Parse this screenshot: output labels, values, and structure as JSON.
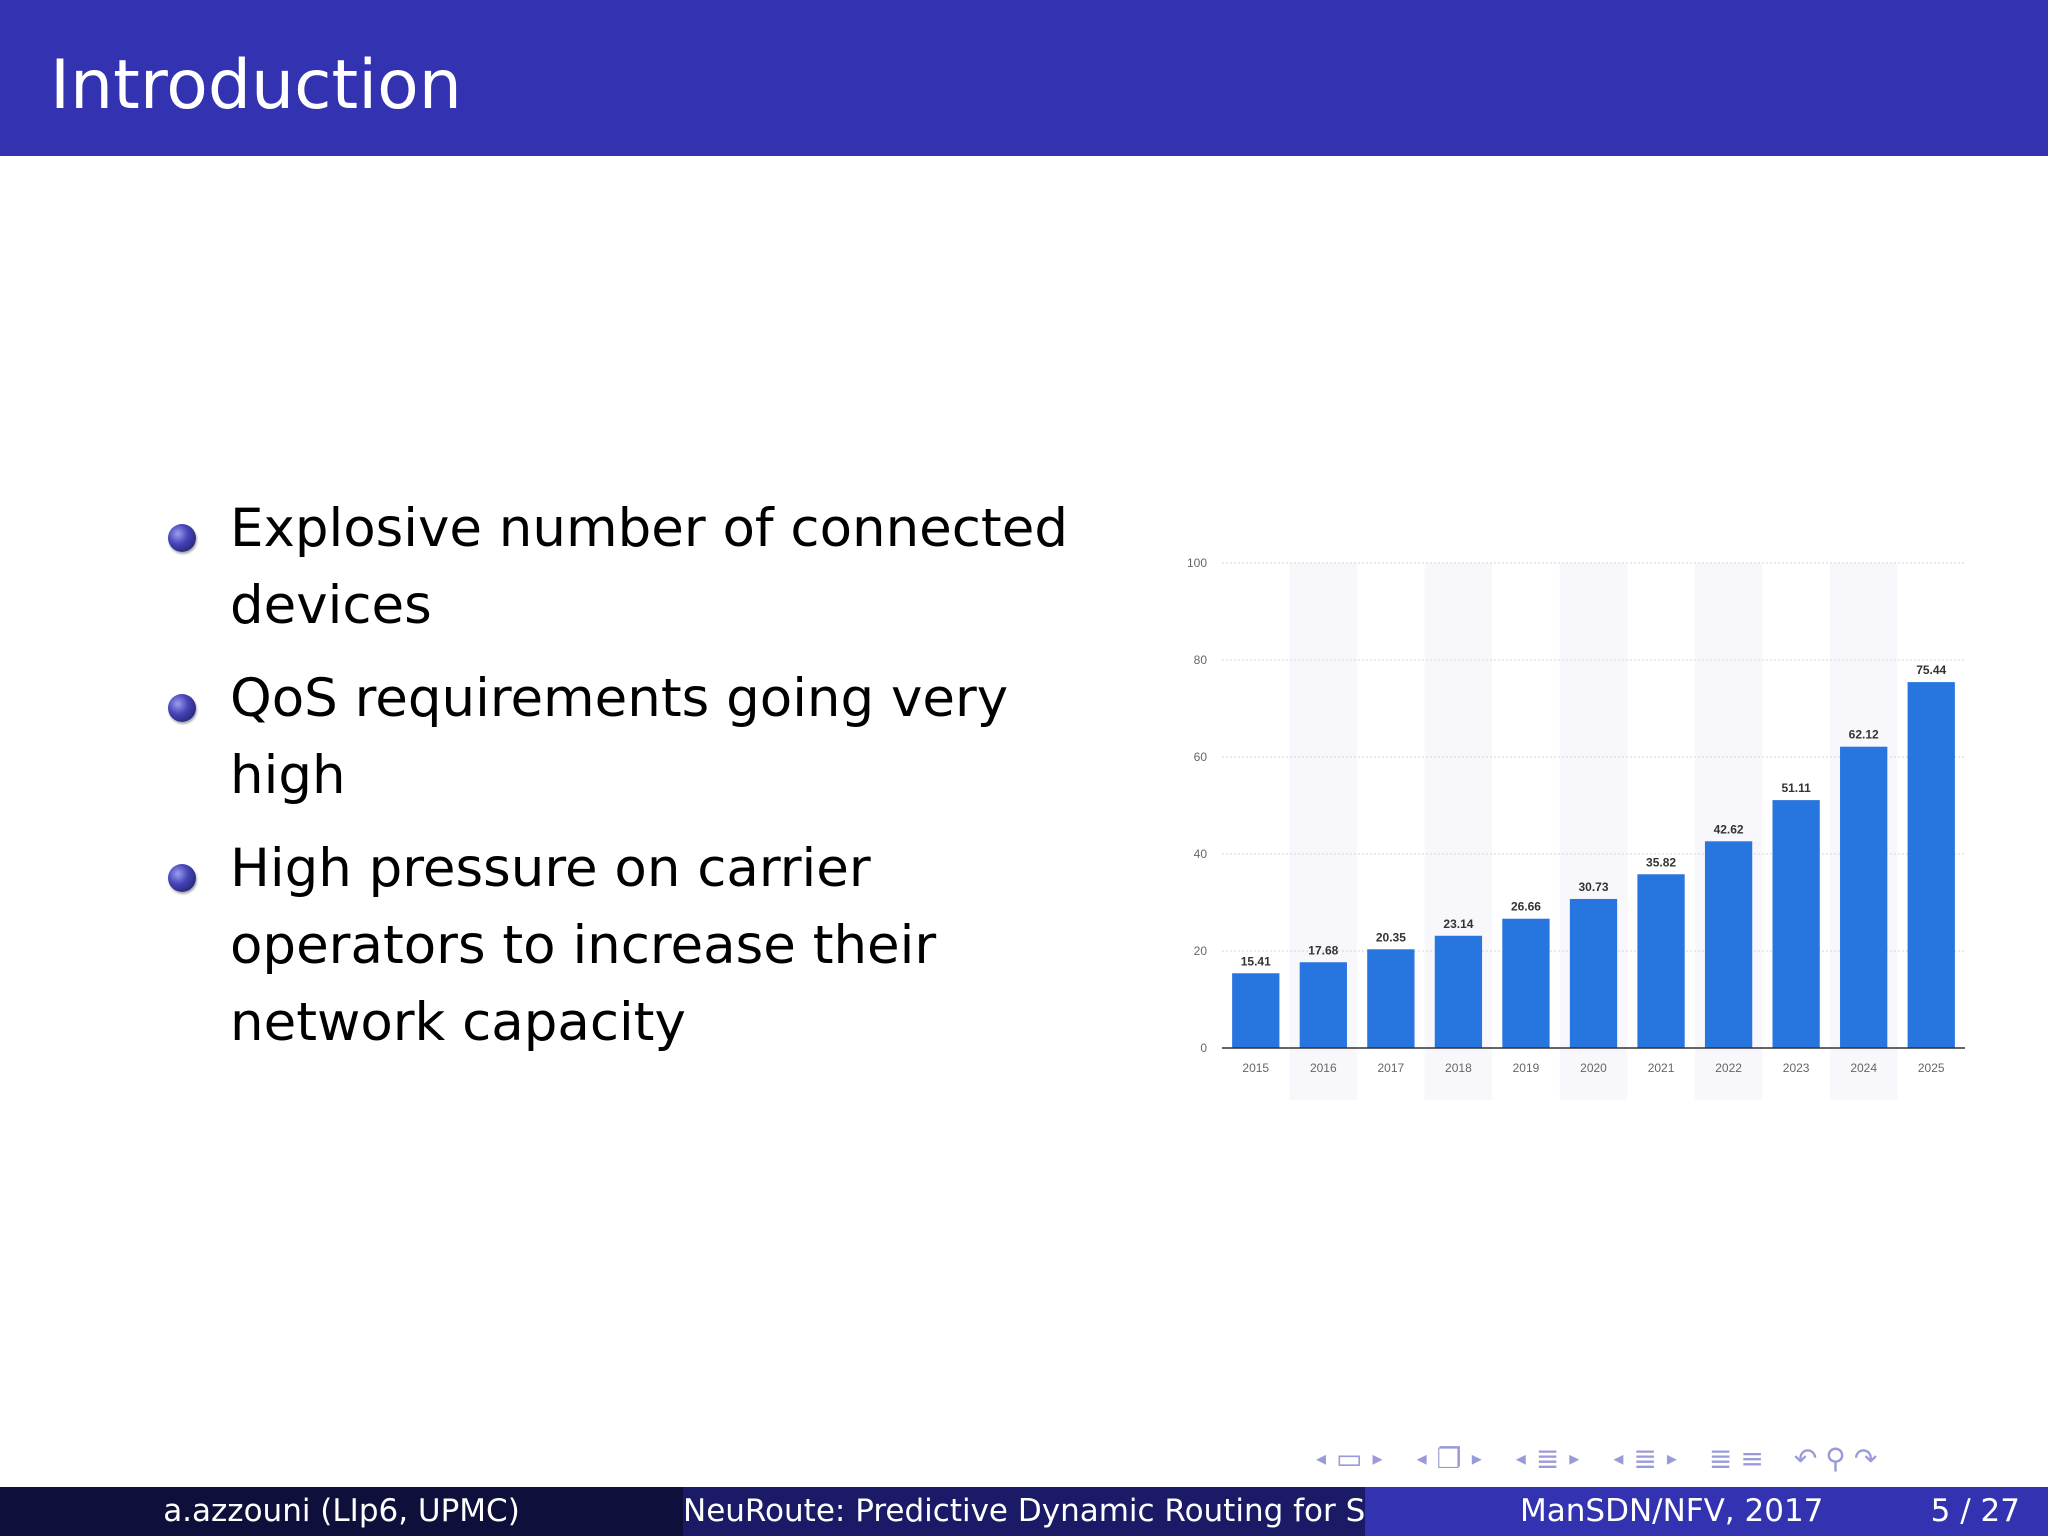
{
  "slide": {
    "title": "Introduction",
    "bullets": [
      "Explosive number of connected devices",
      "QoS requirements going very high",
      "High pressure on carrier operators to increase their network capacity"
    ]
  },
  "footer": {
    "author": "a.azzouni  (LIp6, UPMC)",
    "talk_title": "NeuRoute: Predictive Dynamic Routing for Software-Defined Networks",
    "conference": "ManSDN/NFV, 2017",
    "page": "5 / 27"
  },
  "nav_icons": [
    "arrow-left-icon",
    "frame-icon",
    "arrow-right-icon",
    "subsection-icon",
    "section-icon",
    "toc-icon",
    "undo-icon",
    "search-icon",
    "redo-icon"
  ],
  "colors": {
    "title_bar": "#3333b2",
    "bar": "#2775de",
    "footer_left": "#0f0f3c",
    "footer_mid": "#1a1a66",
    "footer_right": "#3333b2"
  },
  "chart_data": {
    "type": "bar",
    "categories": [
      "2015",
      "2016",
      "2017",
      "2018",
      "2019",
      "2020",
      "2021",
      "2022",
      "2023",
      "2024",
      "2025"
    ],
    "values": [
      15.41,
      17.68,
      20.35,
      23.14,
      26.66,
      30.73,
      35.82,
      42.62,
      51.11,
      62.12,
      75.44
    ],
    "value_labels": [
      "15.41",
      "17.68",
      "20.35",
      "23.14",
      "26.66",
      "30.73",
      "35.82",
      "42.62",
      "51.11",
      "62.12",
      "75.44"
    ],
    "yticks": [
      "0",
      "20",
      "40",
      "60",
      "80",
      "100"
    ],
    "ylim": [
      0,
      100
    ],
    "grid": true,
    "title": "",
    "xlabel": "",
    "ylabel": ""
  }
}
